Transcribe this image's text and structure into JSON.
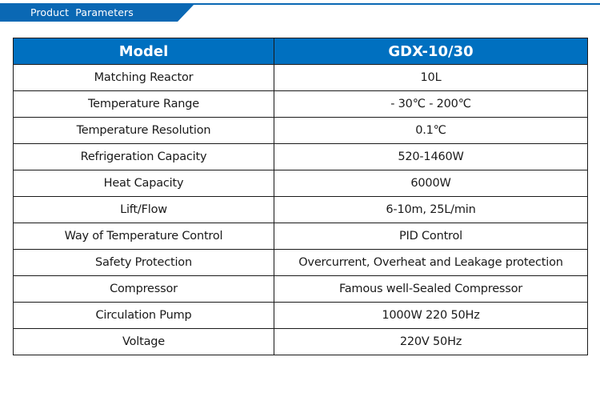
{
  "banner": {
    "title": "Product  Parameters",
    "color": "#0a68b4"
  },
  "table": {
    "header_color": "#0070c0",
    "headers": [
      "Model",
      "GDX-10/30"
    ],
    "rows": [
      {
        "label": "Matching Reactor",
        "value": "10L"
      },
      {
        "label": "Temperature Range",
        "value": "- 30℃ - 200℃"
      },
      {
        "label": "Temperature Resolution",
        "value": "0.1℃"
      },
      {
        "label": "Refrigeration Capacity",
        "value": "520-1460W"
      },
      {
        "label": "Heat Capacity",
        "value": "6000W"
      },
      {
        "label": "Lift/Flow",
        "value": "6-10m, 25L/min"
      },
      {
        "label": "Way of Temperature Control",
        "value": "PID Control"
      },
      {
        "label": "Safety Protection",
        "value": "Overcurrent, Overheat and Leakage protection"
      },
      {
        "label": "Compressor",
        "value": "Famous well-Sealed Compressor"
      },
      {
        "label": "Circulation Pump",
        "value": "1000W 220  50Hz"
      },
      {
        "label": "Voltage",
        "value": "220V  50Hz"
      }
    ]
  }
}
